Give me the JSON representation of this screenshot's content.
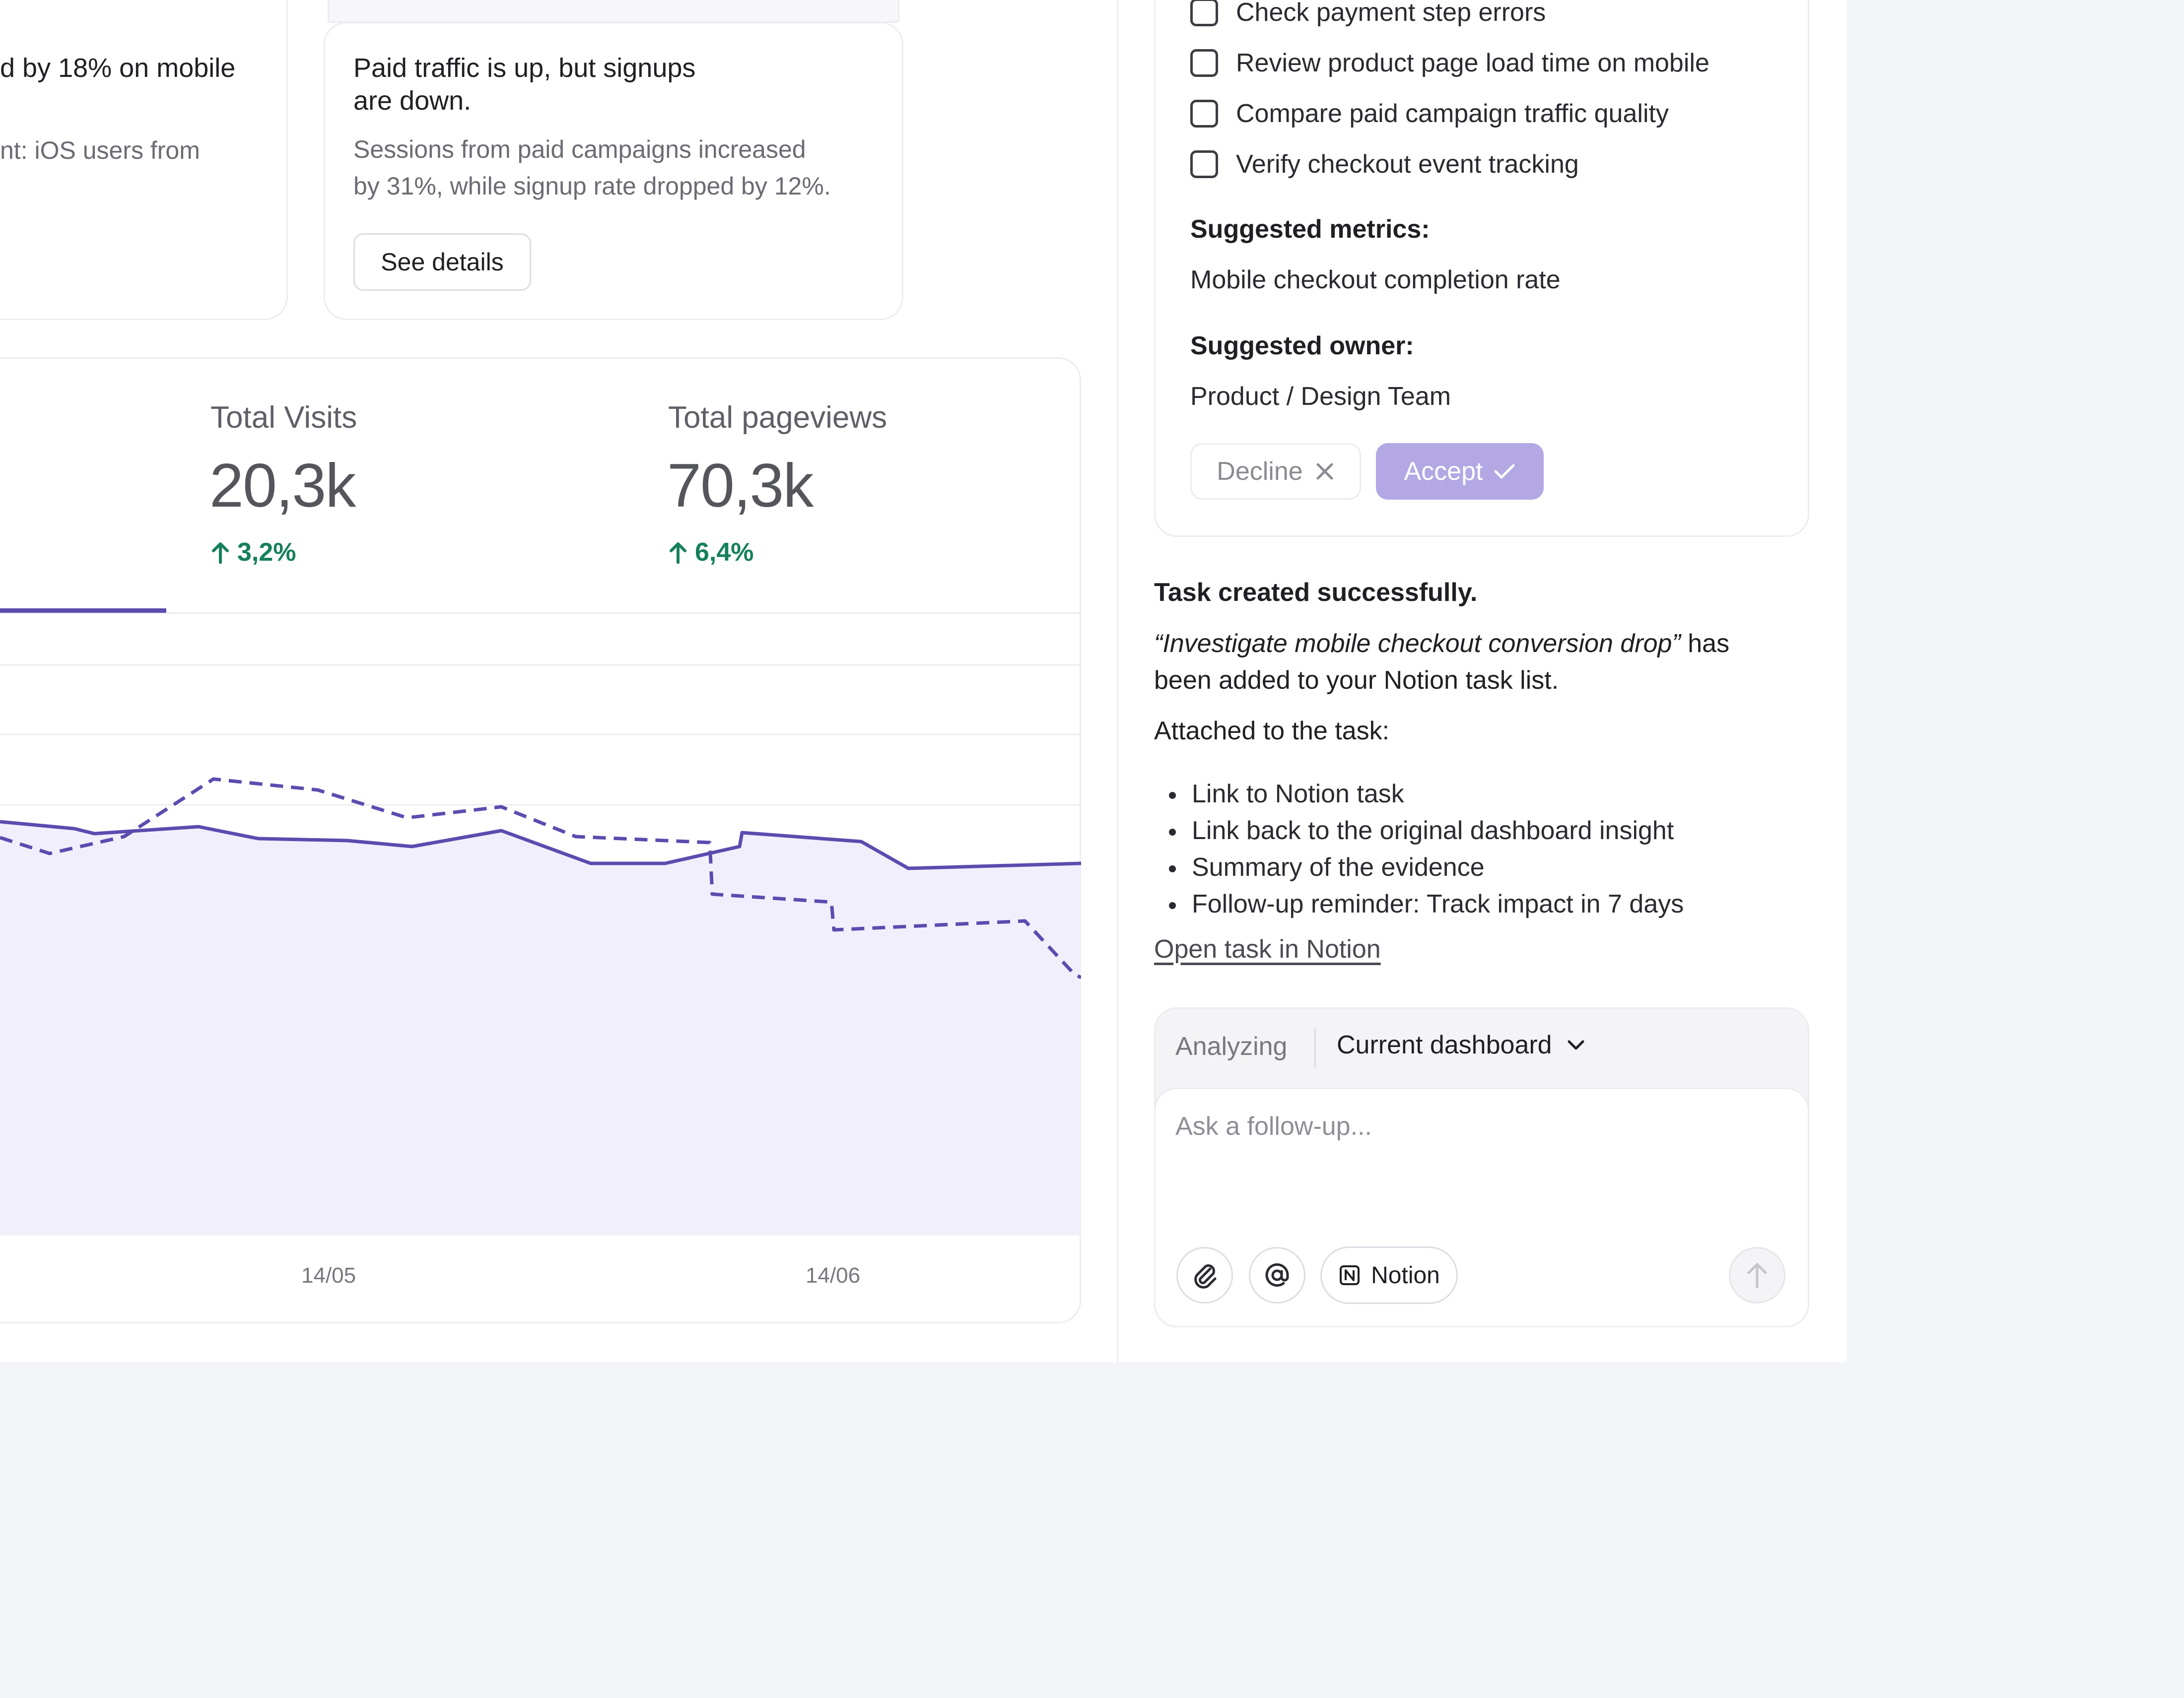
{
  "insights": [
    {
      "title": "d by 18% on mobile",
      "body": "nt: iOS users from"
    },
    {
      "title_line1": "Paid traffic is up, but signups",
      "title_line2": "are down.",
      "body_line1": "Sessions from paid campaigns increased",
      "body_line2": "by 31%, while signup rate dropped by 12%.",
      "button": "See details"
    }
  ],
  "stats": [
    {
      "label": "Total Visits",
      "value": "20,3k",
      "delta": "3,2%"
    },
    {
      "label": "Total pageviews",
      "value": "70,3k",
      "delta": "6,4%"
    }
  ],
  "chart_data": {
    "type": "area",
    "x_ticks": [
      "14/05",
      "14/06"
    ],
    "series": [
      {
        "style": "solid-area",
        "color": "#5b4caf",
        "fill": "#f2effc"
      },
      {
        "style": "dashed",
        "color": "#5b4caf"
      }
    ]
  },
  "panel": {
    "checklist": [
      "Check payment step errors",
      "Review product page load time on mobile",
      "Compare paid campaign traffic quality",
      "Verify checkout event tracking"
    ],
    "metrics_heading": "Suggested metrics:",
    "metrics_value": "Mobile checkout completion rate",
    "owner_heading": "Suggested owner:",
    "owner_value": "Product / Design Team",
    "decline_label": "Decline",
    "accept_label": "Accept",
    "success_title": "Task created successfully.",
    "task_name": "“Investigate mobile checkout conversion drop”",
    "task_suffix": " has",
    "task_line2": "been added to your Notion task list.",
    "attached_heading": "Attached to the task:",
    "attachments": [
      "Link to Notion task",
      "Link back to the original dashboard insight",
      "Summary of the evidence",
      "Follow-up reminder: Track impact in 7 days"
    ],
    "open_link": "Open task in Notion"
  },
  "composer": {
    "analyzing_label": "Analyzing",
    "context_value": "Current dashboard",
    "placeholder": "Ask a follow-up...",
    "notion_chip": "Notion"
  }
}
